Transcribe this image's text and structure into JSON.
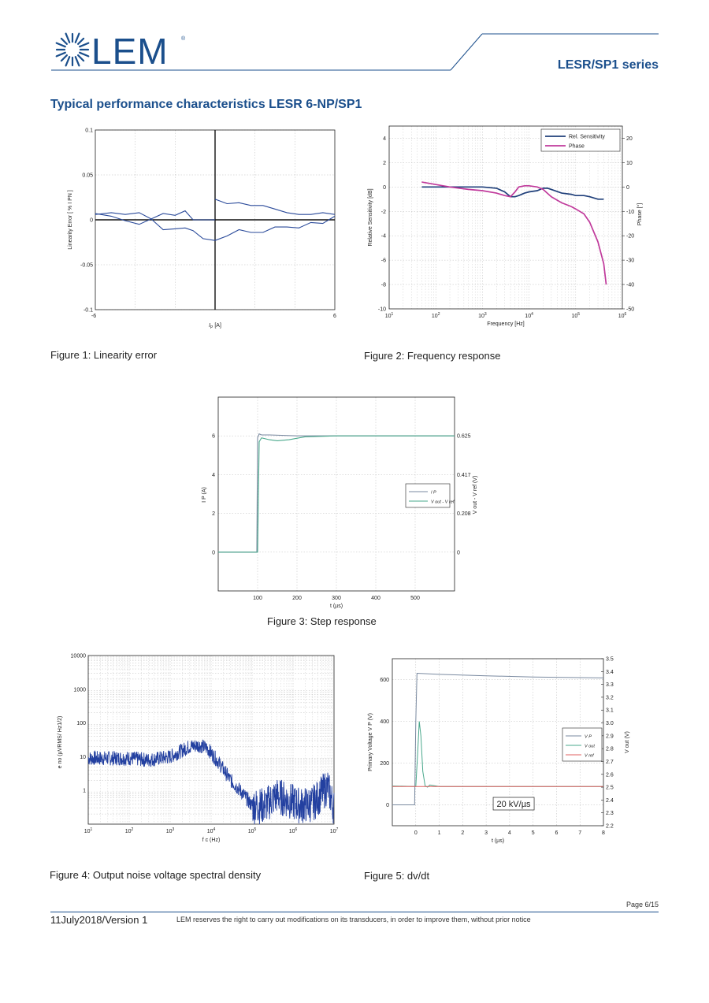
{
  "header": {
    "logo_text": "LEM",
    "series_title": "LESR/SP1 series",
    "brand_color": "#1b4f8c"
  },
  "section_title": "Typical performance characteristics LESR 6-NP/SP1",
  "figures": {
    "fig1": {
      "caption": "Figure 1: Linearity error"
    },
    "fig2": {
      "caption": "Figure 2: Frequency response"
    },
    "fig3": {
      "caption": "Figure 3: Step response"
    },
    "fig4": {
      "caption": "Figure 4: Output noise voltage spectral density"
    },
    "fig5": {
      "caption": "Figure 5: dv/dt"
    }
  },
  "footer": {
    "page": "Page 6/15",
    "version": "11July2018/Version 1",
    "notice": "LEM reserves the right to carry out modifications on its transducers, in order to improve them, without prior notice"
  },
  "chart_data": [
    {
      "id": "linearity",
      "type": "line",
      "xlabel": "I_P [A]",
      "ylabel": "Linearity Error [ % I_PN ]",
      "xlim": [
        -6,
        6
      ],
      "ylim": [
        -0.1,
        0.1
      ],
      "xticks": [
        "-6",
        "6"
      ],
      "yticks": [
        "0.1",
        "0.05",
        "0",
        "-0.05",
        "-0.1"
      ],
      "grid": true,
      "series": [
        {
          "color": "#2a4a9a",
          "x": [
            -6,
            -5.2,
            -4.5,
            -3.8,
            -3.2,
            -2.6,
            -2,
            -1.5,
            -1.1,
            -0.6,
            0
          ],
          "y": [
            0.006,
            0.008,
            0.006,
            0.008,
            0.001,
            0.007,
            0.005,
            0.01,
            0.0,
            0.0,
            0.0
          ]
        },
        {
          "color": "#2a4a9a",
          "x": [
            -6,
            -5.2,
            -4.5,
            -3.8,
            -3.2,
            -2.6,
            -2,
            -1.5,
            -1.1,
            -0.6,
            0
          ],
          "y": [
            0.007,
            0.004,
            -0.001,
            -0.005,
            0.001,
            -0.011,
            -0.01,
            -0.009,
            -0.012,
            -0.021,
            -0.023
          ]
        },
        {
          "color": "#2a4a9a",
          "x": [
            0,
            0.6,
            1.2,
            1.8,
            2.4,
            3,
            3.6,
            4.2,
            4.8,
            5.4,
            6
          ],
          "y": [
            0.023,
            0.018,
            0.019,
            0.016,
            0.016,
            0.012,
            0.008,
            0.006,
            0.006,
            0.008,
            0.006
          ]
        },
        {
          "color": "#2a4a9a",
          "x": [
            0,
            0.6,
            1.2,
            1.8,
            2.4,
            3,
            3.6,
            4.2,
            4.8,
            5.4,
            6
          ],
          "y": [
            -0.023,
            -0.018,
            -0.011,
            -0.014,
            -0.014,
            -0.008,
            -0.008,
            -0.009,
            -0.003,
            -0.004,
            0.004
          ]
        }
      ]
    },
    {
      "id": "frequency",
      "type": "line",
      "xlabel": "Frequency [Hz]",
      "ylabel": "Relative Sensitivity [dB]",
      "y2label": "Phase [°]",
      "xscale": "log",
      "xlim": [
        10,
        1000000
      ],
      "ylim": [
        -10,
        5
      ],
      "y2lim": [
        -50,
        25
      ],
      "xticks": [
        "10^1",
        "10^2",
        "10^3",
        "10^4",
        "10^5",
        "10^6"
      ],
      "yticks": [
        "4",
        "2",
        "0",
        "-2",
        "-4",
        "-6",
        "-8",
        "-10"
      ],
      "y2ticks": [
        "20",
        "10",
        "0",
        "-10",
        "-20",
        "-30",
        "-40",
        "-50"
      ],
      "legend": "top-right",
      "series": [
        {
          "name": "Rel. Sensitivity",
          "color": "#1f3f7a",
          "x": [
            50,
            100,
            200,
            500,
            1000,
            2000,
            3000,
            4000,
            5000,
            6000,
            8000,
            10000,
            15000,
            20000,
            25000,
            30000,
            50000,
            80000,
            100000,
            150000,
            200000,
            300000,
            400000
          ],
          "y": [
            0.0,
            0.0,
            0.0,
            0.0,
            0.0,
            -0.1,
            -0.4,
            -0.8,
            -0.8,
            -0.7,
            -0.5,
            -0.4,
            -0.3,
            -0.1,
            -0.1,
            -0.2,
            -0.5,
            -0.6,
            -0.7,
            -0.7,
            -0.8,
            -1.0,
            -1.0
          ]
        },
        {
          "name": "Phase",
          "color": "#c0399b",
          "x": [
            50,
            100,
            200,
            500,
            1000,
            2000,
            3000,
            4000,
            5000,
            6000,
            8000,
            10000,
            15000,
            20000,
            30000,
            50000,
            80000,
            100000,
            150000,
            200000,
            300000,
            400000,
            450000
          ],
          "y": [
            0.4,
            0.2,
            0.0,
            -0.2,
            -0.3,
            -0.5,
            -0.7,
            -0.8,
            -0.4,
            0.0,
            0.1,
            0.1,
            0.0,
            -0.2,
            -0.8,
            -1.3,
            -1.6,
            -1.8,
            -2.2,
            -2.9,
            -4.5,
            -6.3,
            -8.0
          ]
        }
      ]
    },
    {
      "id": "step",
      "type": "line",
      "xlabel": "t (µs)",
      "ylabel": "I_P (A)",
      "y2label": "V_out - V_ref (V)",
      "xlim": [
        0,
        600
      ],
      "ylim": [
        -2,
        8
      ],
      "xticks": [
        "100",
        "200",
        "300",
        "400",
        "500"
      ],
      "yticks": [
        "6",
        "4",
        "2",
        "0"
      ],
      "y2ticks": [
        "0.625",
        "0.417",
        "0.208",
        "0"
      ],
      "legend": "center-right",
      "series": [
        {
          "name": "I_P",
          "color": "#7a8aa0",
          "x": [
            0,
            98,
            100,
            104,
            110,
            130,
            200,
            300,
            400,
            500,
            600
          ],
          "y": [
            0,
            0,
            5.9,
            6.1,
            6.05,
            6.05,
            6.0,
            6.0,
            6.0,
            6.0,
            6.0
          ]
        },
        {
          "name": "V_out - V_ref",
          "color": "#4aa88c",
          "x": [
            0,
            100,
            104,
            110,
            130,
            150,
            180,
            220,
            300,
            400,
            500,
            600
          ],
          "y": [
            0,
            0,
            5.7,
            5.9,
            5.8,
            5.75,
            5.8,
            5.95,
            6.0,
            6.0,
            6.0,
            6.0
          ]
        }
      ]
    },
    {
      "id": "noise",
      "type": "line",
      "xlabel": "f_c (Hz)",
      "ylabel": "e_no (µVRMS/ Hz^1/2)",
      "xscale": "log",
      "yscale": "log",
      "xlim": [
        10,
        10000000
      ],
      "ylim": [
        0.1,
        10000
      ],
      "xticks": [
        "10^1",
        "10^2",
        "10^3",
        "10^4",
        "10^5",
        "10^6",
        "10^7"
      ],
      "yticks": [
        "10000",
        "1000",
        "100",
        "10",
        "1"
      ],
      "series": [
        {
          "color": "#2340a0",
          "x": [
            10,
            30,
            100,
            300,
            1000,
            3000,
            5000,
            8000,
            15000,
            30000,
            60000,
            100000,
            200000,
            400000,
            800000,
            1500000,
            3000000,
            7000000,
            10000000
          ],
          "y": [
            9,
            9,
            9,
            8,
            10,
            20,
            22,
            18,
            7,
            2,
            0.8,
            0.35,
            0.35,
            0.7,
            0.5,
            0.35,
            0.4,
            1.3,
            0.3
          ]
        }
      ]
    },
    {
      "id": "dvdt",
      "type": "line",
      "xlabel": "t (µs)",
      "ylabel": "Primary Voltage V_P (V)",
      "y2label": "V_out (V)",
      "xlim": [
        -1,
        8
      ],
      "ylim": [
        -100,
        700
      ],
      "y2lim": [
        2.2,
        3.5
      ],
      "xticks": [
        "0",
        "1",
        "2",
        "3",
        "4",
        "5",
        "6",
        "7",
        "8"
      ],
      "yticks": [
        "600",
        "400",
        "200",
        "0"
      ],
      "y2ticks": [
        "3.5",
        "3.4",
        "3.3",
        "3.2",
        "3.1",
        "3.0",
        "2.9",
        "2.8",
        "2.7",
        "2.6",
        "2.5",
        "2.4",
        "2.3",
        "2.2"
      ],
      "legend": "center-right",
      "annotation": "20 kV/µs",
      "series": [
        {
          "name": "V_P",
          "color": "#7a8aa0",
          "x": [
            -1,
            -0.05,
            0.0,
            0.05,
            1,
            3,
            5,
            8
          ],
          "y": [
            0,
            0,
            400,
            630,
            625,
            618,
            612,
            608
          ]
        },
        {
          "name": "V_out",
          "color": "#4aa88c",
          "x": [
            -1,
            0,
            0.08,
            0.15,
            0.22,
            0.3,
            0.4,
            0.5,
            0.6,
            1,
            8
          ],
          "y": [
            90,
            88,
            250,
            400,
            330,
            160,
            90,
            85,
            95,
            88,
            88
          ]
        },
        {
          "name": "V_ref",
          "color": "#e06060",
          "x": [
            -1,
            8
          ],
          "y": [
            88,
            88
          ]
        }
      ]
    }
  ]
}
